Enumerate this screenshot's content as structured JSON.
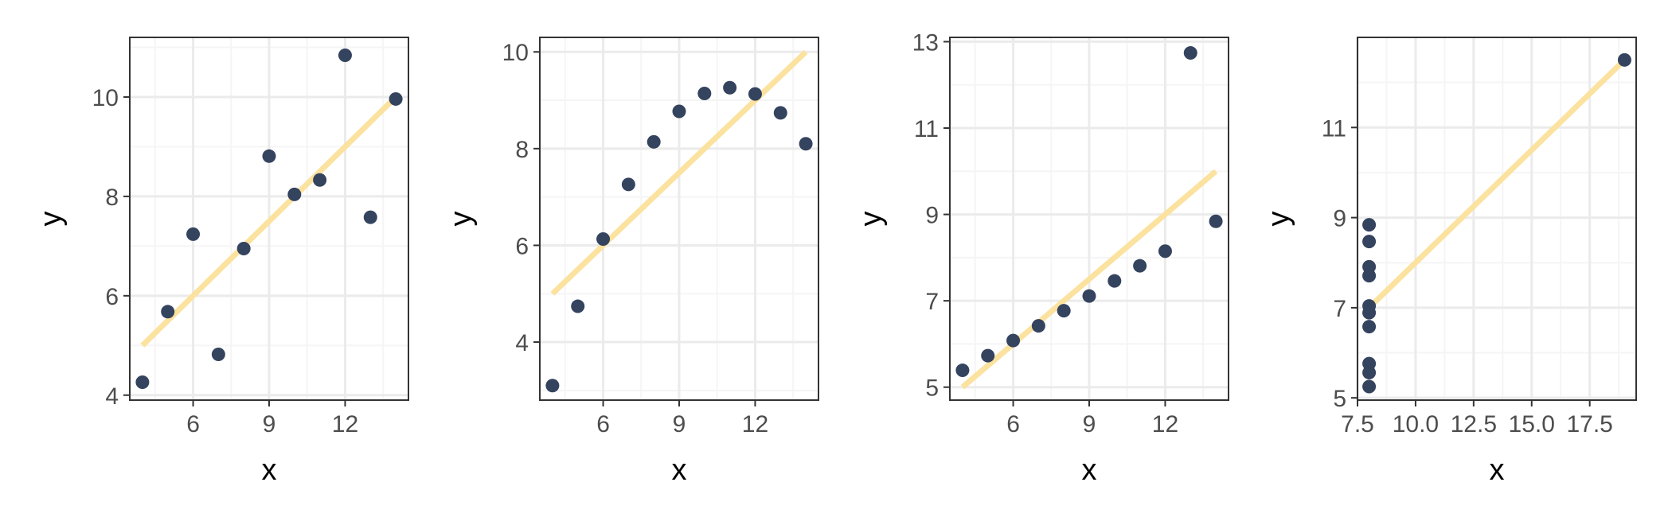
{
  "chart_data": [
    {
      "type": "scatter",
      "xlabel": "x",
      "ylabel": "y",
      "xlim": [
        3.5,
        14.5
      ],
      "ylim": [
        3.9,
        11.2
      ],
      "xticks": [
        6,
        9,
        12
      ],
      "xtick_labels": [
        "6",
        "9",
        "12"
      ],
      "yticks": [
        4,
        6,
        8,
        10
      ],
      "ytick_labels": [
        "4",
        "6",
        "8",
        "10"
      ],
      "grid": true,
      "points": [
        {
          "x": 10,
          "y": 8.04
        },
        {
          "x": 8,
          "y": 6.95
        },
        {
          "x": 13,
          "y": 7.58
        },
        {
          "x": 9,
          "y": 8.81
        },
        {
          "x": 11,
          "y": 8.33
        },
        {
          "x": 14,
          "y": 9.96
        },
        {
          "x": 6,
          "y": 7.24
        },
        {
          "x": 4,
          "y": 4.26
        },
        {
          "x": 12,
          "y": 10.84
        },
        {
          "x": 7,
          "y": 4.82
        },
        {
          "x": 5,
          "y": 5.68
        }
      ],
      "fit_line": {
        "x": [
          4,
          14
        ],
        "y": [
          5.0,
          10.0
        ]
      }
    },
    {
      "type": "scatter",
      "xlabel": "x",
      "ylabel": "y",
      "xlim": [
        3.5,
        14.5
      ],
      "ylim": [
        2.8,
        10.3
      ],
      "xticks": [
        6,
        9,
        12
      ],
      "xtick_labels": [
        "6",
        "9",
        "12"
      ],
      "yticks": [
        4,
        6,
        8,
        10
      ],
      "ytick_labels": [
        "4",
        "6",
        "8",
        "10"
      ],
      "grid": true,
      "points": [
        {
          "x": 10,
          "y": 9.14
        },
        {
          "x": 8,
          "y": 8.14
        },
        {
          "x": 13,
          "y": 8.74
        },
        {
          "x": 9,
          "y": 8.77
        },
        {
          "x": 11,
          "y": 9.26
        },
        {
          "x": 14,
          "y": 8.1
        },
        {
          "x": 6,
          "y": 6.13
        },
        {
          "x": 4,
          "y": 3.1
        },
        {
          "x": 12,
          "y": 9.13
        },
        {
          "x": 7,
          "y": 7.26
        },
        {
          "x": 5,
          "y": 4.74
        }
      ],
      "fit_line": {
        "x": [
          4,
          14
        ],
        "y": [
          5.0,
          10.0
        ]
      }
    },
    {
      "type": "scatter",
      "xlabel": "x",
      "ylabel": "y",
      "xlim": [
        3.5,
        14.5
      ],
      "ylim": [
        4.7,
        13.1
      ],
      "xticks": [
        6,
        9,
        12
      ],
      "xtick_labels": [
        "6",
        "9",
        "12"
      ],
      "yticks": [
        5,
        7,
        9,
        11,
        13
      ],
      "ytick_labels": [
        "5",
        "7",
        "9",
        "11",
        "13"
      ],
      "grid": true,
      "points": [
        {
          "x": 10,
          "y": 7.46
        },
        {
          "x": 8,
          "y": 6.77
        },
        {
          "x": 13,
          "y": 12.74
        },
        {
          "x": 9,
          "y": 7.11
        },
        {
          "x": 11,
          "y": 7.81
        },
        {
          "x": 14,
          "y": 8.84
        },
        {
          "x": 6,
          "y": 6.08
        },
        {
          "x": 4,
          "y": 5.39
        },
        {
          "x": 12,
          "y": 8.15
        },
        {
          "x": 7,
          "y": 6.42
        },
        {
          "x": 5,
          "y": 5.73
        }
      ],
      "fit_line": {
        "x": [
          4,
          14
        ],
        "y": [
          5.0,
          10.0
        ]
      }
    },
    {
      "type": "scatter",
      "xlabel": "x",
      "ylabel": "y",
      "xlim": [
        7.5,
        19.5
      ],
      "ylim": [
        4.95,
        13.0
      ],
      "xticks": [
        7.5,
        10,
        12.5,
        15,
        17.5
      ],
      "xtick_labels": [
        "7.5",
        "10.0",
        "12.5",
        "15.0",
        "17.5"
      ],
      "yticks": [
        5,
        7,
        9,
        11
      ],
      "ytick_labels": [
        "5",
        "7",
        "9",
        "11"
      ],
      "grid": true,
      "points": [
        {
          "x": 8,
          "y": 6.58
        },
        {
          "x": 8,
          "y": 5.76
        },
        {
          "x": 8,
          "y": 7.71
        },
        {
          "x": 8,
          "y": 8.84
        },
        {
          "x": 8,
          "y": 8.47
        },
        {
          "x": 8,
          "y": 7.04
        },
        {
          "x": 8,
          "y": 5.25
        },
        {
          "x": 19,
          "y": 12.5
        },
        {
          "x": 8,
          "y": 5.56
        },
        {
          "x": 8,
          "y": 7.91
        },
        {
          "x": 8,
          "y": 6.89
        }
      ],
      "fit_line": {
        "x": [
          8,
          19
        ],
        "y": [
          7.0,
          12.5
        ]
      }
    }
  ],
  "style": {
    "point_color": "#34435e",
    "fit_color": "#fbe29f",
    "panel_border": "#333333",
    "grid_major": "#ebebeb",
    "grid_minor": "#f5f5f5",
    "tick_color": "#333333",
    "tick_label_color": "#4d4d4d"
  }
}
